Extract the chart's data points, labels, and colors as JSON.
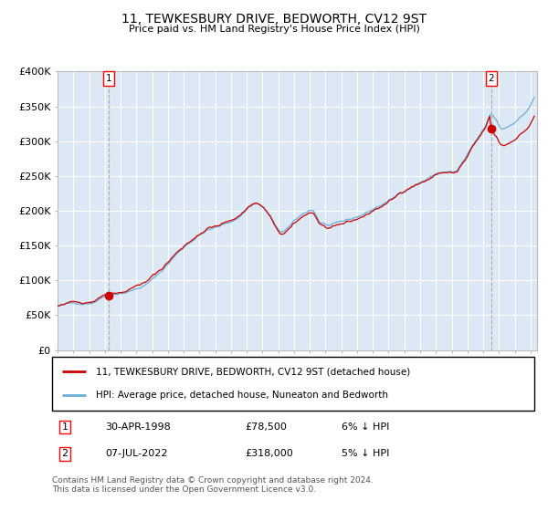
{
  "title": "11, TEWKESBURY DRIVE, BEDWORTH, CV12 9ST",
  "subtitle": "Price paid vs. HM Land Registry's House Price Index (HPI)",
  "sale1_price": 78500,
  "sale2_price": 318000,
  "legend_line1": "11, TEWKESBURY DRIVE, BEDWORTH, CV12 9ST (detached house)",
  "legend_line2": "HPI: Average price, detached house, Nuneaton and Bedworth",
  "footer": "Contains HM Land Registry data © Crown copyright and database right 2024.\nThis data is licensed under the Open Government Licence v3.0.",
  "hpi_color": "#6baed6",
  "price_color": "#cc0000",
  "marker_color": "#cc0000",
  "plot_bg": "#dce9f5",
  "grid_color": "#ffffff",
  "ylim": [
    0,
    400000
  ],
  "yticks": [
    0,
    50000,
    100000,
    150000,
    200000,
    250000,
    300000,
    350000,
    400000
  ]
}
